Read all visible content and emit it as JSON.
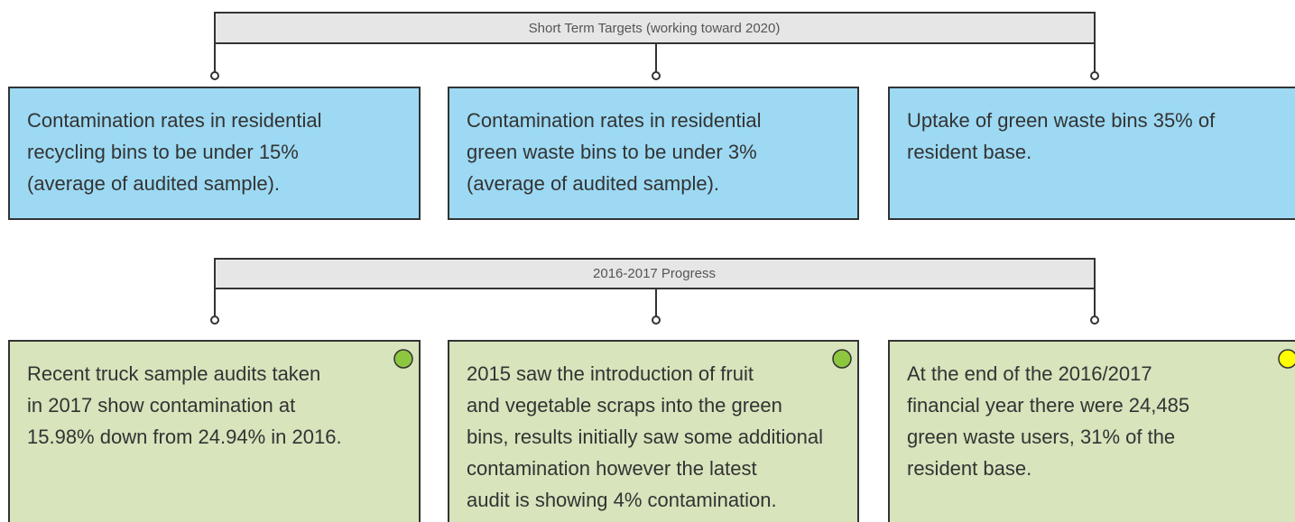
{
  "top_header": {
    "title": "Short Term Targets (working toward 2020)"
  },
  "targets": [
    {
      "lines": [
        "Contamination rates in residential",
        "recycling bins to be under 15%",
        "(average of audited sample)."
      ]
    },
    {
      "lines": [
        "Contamination rates in residential",
        "green waste bins to be under 3%",
        "(average of audited sample)."
      ]
    },
    {
      "lines": [
        "Uptake of green waste bins 35% of",
        "resident base."
      ]
    }
  ],
  "progress_header": {
    "title": "2016-2017 Progress"
  },
  "progress": [
    {
      "lines": [
        "Recent truck sample audits taken",
        "in 2017 show contamination at",
        "15.98% down from 24.94% in 2016."
      ],
      "status_color": "#8dc63f"
    },
    {
      "lines": [
        "2015 saw the introduction of fruit",
        "and vegetable scraps into the green",
        "bins, results initially saw some additional",
        "contamination however the latest",
        "audit is showing 4% contamination."
      ],
      "status_color": "#8dc63f"
    },
    {
      "lines": [
        "At the end of the 2016/2017",
        "financial year there were 24,485",
        "green waste users, 31% of the",
        "resident base."
      ],
      "status_color": "#ffff00"
    }
  ]
}
